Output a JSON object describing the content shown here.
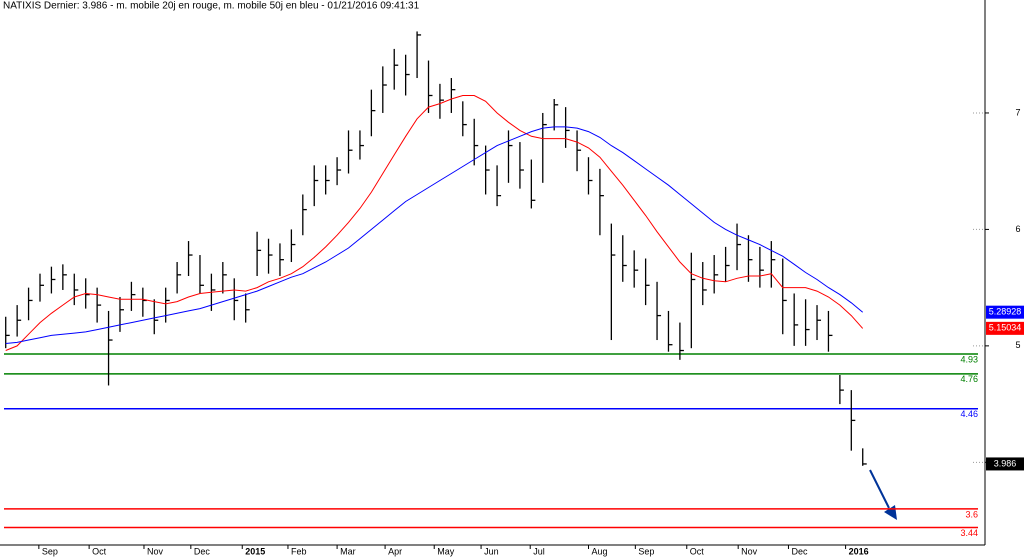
{
  "chart_data": {
    "type": "ohlc",
    "title": "NATIXIS Dernier: 3.986 - m. mobile 20j en rouge, m. mobile 50j en bleu - 01/21/2016 09:41:31",
    "xlim": [
      -0.5,
      85.7
    ],
    "xticks": [
      {
        "value": 2.9,
        "label": "Sep"
      },
      {
        "value": 7.3,
        "label": "Oct"
      },
      {
        "value": 12.1,
        "label": "Nov"
      },
      {
        "value": 16.2,
        "label": "Dec"
      },
      {
        "value": 20.7,
        "label": "2015"
      },
      {
        "value": 24.7,
        "label": "Feb"
      },
      {
        "value": 29,
        "label": "Mar"
      },
      {
        "value": 33.2,
        "label": "Apr"
      },
      {
        "value": 37.5,
        "label": "May"
      },
      {
        "value": 41.6,
        "label": "Jun"
      },
      {
        "value": 45.9,
        "label": "Jul"
      },
      {
        "value": 51,
        "label": "Aug"
      },
      {
        "value": 55.1,
        "label": "Sep"
      },
      {
        "value": 59.6,
        "label": "Oct"
      },
      {
        "value": 64.1,
        "label": "Nov"
      },
      {
        "value": 68.5,
        "label": "Dec"
      },
      {
        "value": 73.5,
        "label": "2016"
      }
    ],
    "ylim": [
      3.29,
      7.97
    ],
    "yticks": [
      4,
      5,
      6,
      7
    ],
    "bars": {
      "color": "#000000",
      "high": [
        5.25,
        5.35,
        5.5,
        5.62,
        5.68,
        5.7,
        5.62,
        5.58,
        5.5,
        5.3,
        5.42,
        5.55,
        5.5,
        5.4,
        5.5,
        5.72,
        5.9,
        5.78,
        5.62,
        5.72,
        5.58,
        5.45,
        5.98,
        5.92,
        5.88,
        6.0,
        6.3,
        6.55,
        6.55,
        6.62,
        6.85,
        6.85,
        7.2,
        7.4,
        7.55,
        7.5,
        7.7,
        7.45,
        7.25,
        7.3,
        7.1,
        6.95,
        6.72,
        6.55,
        6.85,
        6.75,
        6.6,
        7.0,
        7.12,
        7.05,
        6.85,
        6.62,
        6.52,
        6.05,
        5.95,
        5.82,
        5.75,
        5.55,
        5.3,
        5.2,
        5.8,
        5.72,
        5.78,
        5.85,
        6.05,
        5.95,
        5.85,
        5.9,
        5.75,
        5.45,
        5.4,
        5.35,
        5.3,
        4.75,
        4.62,
        4.12
      ],
      "low": [
        4.98,
        5.08,
        5.22,
        5.38,
        5.45,
        5.48,
        5.35,
        5.32,
        5.2,
        4.66,
        5.12,
        5.3,
        5.25,
        5.1,
        5.2,
        5.45,
        5.6,
        5.45,
        5.3,
        5.45,
        5.22,
        5.2,
        5.6,
        5.62,
        5.6,
        5.72,
        5.95,
        6.2,
        6.3,
        6.38,
        6.48,
        6.6,
        6.8,
        7.0,
        7.2,
        7.15,
        7.3,
        7.0,
        6.95,
        7.0,
        6.8,
        6.55,
        6.3,
        6.2,
        6.4,
        6.35,
        6.18,
        6.4,
        6.85,
        6.7,
        6.5,
        6.3,
        5.95,
        5.05,
        5.55,
        5.5,
        5.35,
        5.05,
        4.95,
        4.88,
        4.98,
        5.35,
        5.45,
        5.55,
        5.65,
        5.55,
        5.5,
        5.5,
        5.1,
        5.0,
        5.0,
        5.05,
        4.95,
        4.5,
        4.1,
        3.97
      ],
      "close": [
        5.09,
        5.22,
        5.39,
        5.52,
        5.57,
        5.61,
        5.48,
        5.44,
        5.35,
        5.05,
        5.31,
        5.44,
        5.39,
        5.22,
        5.39,
        5.61,
        5.78,
        5.52,
        5.48,
        5.61,
        5.39,
        5.31,
        5.82,
        5.78,
        5.74,
        5.87,
        6.17,
        6.42,
        6.42,
        6.51,
        6.68,
        6.72,
        7.02,
        7.24,
        7.41,
        7.33,
        7.67,
        7.15,
        7.11,
        7.2,
        6.9,
        6.72,
        6.51,
        6.29,
        6.72,
        6.51,
        6.25,
        6.9,
        7.07,
        6.85,
        6.68,
        6.42,
        6.29,
        5.78,
        5.69,
        5.65,
        5.52,
        5.26,
        5.01,
        4.96,
        5.57,
        5.48,
        5.61,
        5.69,
        5.87,
        5.74,
        5.65,
        5.74,
        5.39,
        5.18,
        5.14,
        5.22,
        5.09,
        4.62,
        4.36,
        3.986
      ]
    },
    "moving_averages": [
      {
        "color": "#ff0000",
        "values": [
          4.96,
          5.0,
          5.1,
          5.2,
          5.28,
          5.35,
          5.42,
          5.45,
          5.44,
          5.42,
          5.4,
          5.4,
          5.4,
          5.38,
          5.36,
          5.38,
          5.42,
          5.45,
          5.46,
          5.47,
          5.48,
          5.47,
          5.5,
          5.55,
          5.58,
          5.62,
          5.68,
          5.76,
          5.85,
          5.95,
          6.06,
          6.18,
          6.32,
          6.48,
          6.64,
          6.8,
          6.95,
          7.05,
          7.08,
          7.12,
          7.15,
          7.15,
          7.1,
          7.0,
          6.92,
          6.85,
          6.8,
          6.78,
          6.78,
          6.78,
          6.75,
          6.7,
          6.62,
          6.5,
          6.38,
          6.25,
          6.12,
          5.98,
          5.85,
          5.72,
          5.62,
          5.58,
          5.56,
          5.55,
          5.58,
          5.6,
          5.6,
          5.62,
          5.5,
          5.5,
          5.5,
          5.47,
          5.42,
          5.35,
          5.26,
          5.15034
        ]
      },
      {
        "color": "#0000ff",
        "values": [
          5.02,
          5.03,
          5.05,
          5.07,
          5.09,
          5.1,
          5.11,
          5.12,
          5.14,
          5.16,
          5.18,
          5.2,
          5.22,
          5.24,
          5.26,
          5.28,
          5.3,
          5.32,
          5.35,
          5.38,
          5.41,
          5.44,
          5.47,
          5.51,
          5.55,
          5.59,
          5.62,
          5.67,
          5.72,
          5.78,
          5.84,
          5.92,
          6.0,
          6.08,
          6.16,
          6.24,
          6.3,
          6.36,
          6.42,
          6.48,
          6.54,
          6.6,
          6.66,
          6.72,
          6.76,
          6.8,
          6.84,
          6.87,
          6.88,
          6.88,
          6.87,
          6.84,
          6.79,
          6.72,
          6.66,
          6.59,
          6.52,
          6.45,
          6.38,
          6.3,
          6.22,
          6.14,
          6.06,
          6.0,
          5.95,
          5.91,
          5.87,
          5.82,
          5.77,
          5.7,
          5.63,
          5.57,
          5.5,
          5.44,
          5.37,
          5.28928
        ]
      }
    ],
    "levels": [
      {
        "value": 4.93,
        "color": "#008000"
      },
      {
        "value": 4.76,
        "color": "#008000"
      },
      {
        "value": 4.46,
        "color": "#0000ff"
      },
      {
        "value": 3.6,
        "color": "#ff0000"
      },
      {
        "value": 3.44,
        "color": "#ff0000"
      }
    ]
  }
}
